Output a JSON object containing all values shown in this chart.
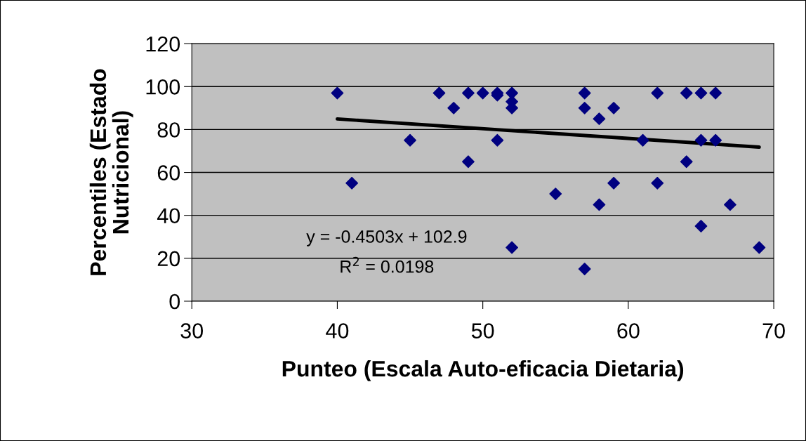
{
  "chart_data": {
    "type": "scatter",
    "xlabel": "Punteo (Escala Auto-eficacia Dietaria)",
    "ylabel": "Percentiles (Estado\nNutricional)",
    "x": [
      40,
      41,
      45,
      47,
      48,
      49,
      49,
      50,
      51,
      51,
      51,
      52,
      52,
      52,
      52,
      55,
      57,
      57,
      57,
      58,
      58,
      59,
      59,
      61,
      62,
      62,
      64,
      64,
      65,
      65,
      65,
      66,
      66,
      67,
      69
    ],
    "series": [
      {
        "color": "#000080",
        "marker": "diamond",
        "values": [
          97,
          55,
          75,
          97,
          90,
          97,
          65,
          97,
          97,
          96,
          75,
          97,
          93,
          90,
          25,
          50,
          97,
          90,
          15,
          85,
          45,
          90,
          55,
          75,
          97,
          55,
          97,
          65,
          97,
          75,
          35,
          97,
          75,
          45,
          25
        ]
      },
      {
        "type": "line",
        "color": "#000000",
        "marker": "none",
        "line_style": "solid",
        "x": [
          40,
          69
        ],
        "values": [
          84.9,
          71.8
        ]
      }
    ],
    "annotations": [
      "y = -0.4503x + 102.9",
      "R$^{2}$ = 0.0198"
    ],
    "xlim": [
      30,
      70
    ],
    "xticks": [
      30,
      40,
      50,
      60,
      70
    ],
    "ylim": [
      0,
      120
    ],
    "yticks": [
      0,
      20,
      40,
      60,
      80,
      100,
      120
    ],
    "grid": "y",
    "legend": false
  }
}
